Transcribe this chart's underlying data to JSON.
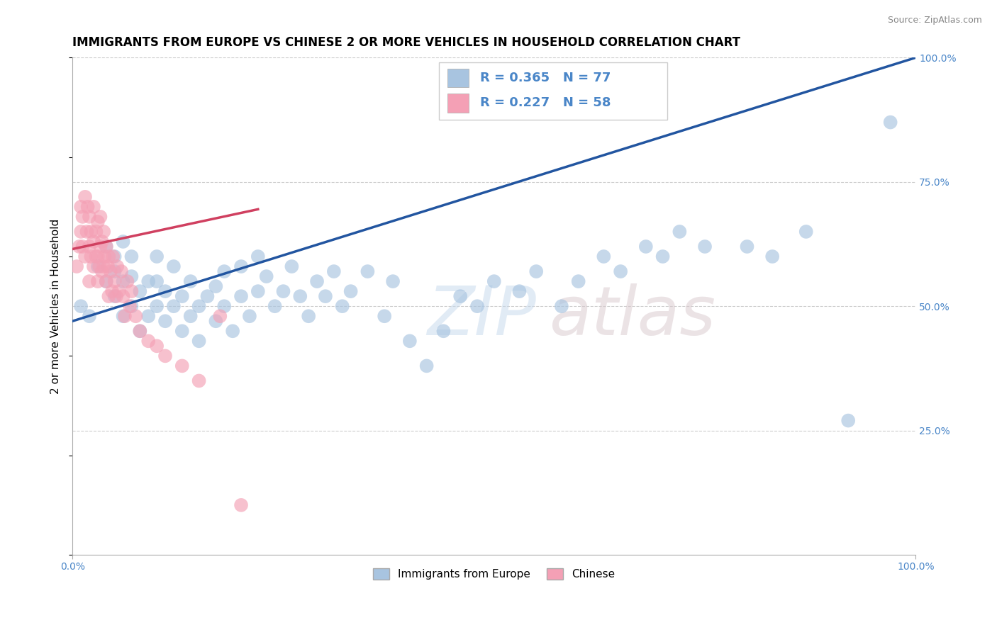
{
  "title": "IMMIGRANTS FROM EUROPE VS CHINESE 2 OR MORE VEHICLES IN HOUSEHOLD CORRELATION CHART",
  "source": "Source: ZipAtlas.com",
  "ylabel": "2 or more Vehicles in Household",
  "xlim": [
    0,
    1.0
  ],
  "ylim": [
    0,
    1.0
  ],
  "ytick_positions": [
    0.25,
    0.5,
    0.75,
    1.0
  ],
  "legend_labels": [
    "Immigrants from Europe",
    "Chinese"
  ],
  "r_blue": 0.365,
  "n_blue": 77,
  "r_pink": 0.227,
  "n_pink": 58,
  "blue_color": "#a8c4e0",
  "pink_color": "#f4a0b5",
  "blue_line_color": "#2255a0",
  "pink_line_color": "#d04060",
  "grid_color": "#cccccc",
  "blue_scatter_x": [
    0.01,
    0.02,
    0.03,
    0.04,
    0.04,
    0.05,
    0.05,
    0.05,
    0.06,
    0.06,
    0.06,
    0.07,
    0.07,
    0.07,
    0.08,
    0.08,
    0.09,
    0.09,
    0.1,
    0.1,
    0.1,
    0.11,
    0.11,
    0.12,
    0.12,
    0.13,
    0.13,
    0.14,
    0.14,
    0.15,
    0.15,
    0.16,
    0.17,
    0.17,
    0.18,
    0.18,
    0.19,
    0.2,
    0.2,
    0.21,
    0.22,
    0.22,
    0.23,
    0.24,
    0.25,
    0.26,
    0.27,
    0.28,
    0.29,
    0.3,
    0.31,
    0.32,
    0.33,
    0.35,
    0.37,
    0.38,
    0.4,
    0.42,
    0.44,
    0.46,
    0.48,
    0.5,
    0.53,
    0.55,
    0.58,
    0.6,
    0.63,
    0.65,
    0.68,
    0.7,
    0.72,
    0.75,
    0.8,
    0.83,
    0.87,
    0.92,
    0.97
  ],
  "blue_scatter_y": [
    0.5,
    0.48,
    0.58,
    0.55,
    0.62,
    0.52,
    0.57,
    0.6,
    0.48,
    0.55,
    0.63,
    0.5,
    0.56,
    0.6,
    0.45,
    0.53,
    0.48,
    0.55,
    0.5,
    0.55,
    0.6,
    0.47,
    0.53,
    0.5,
    0.58,
    0.45,
    0.52,
    0.48,
    0.55,
    0.43,
    0.5,
    0.52,
    0.47,
    0.54,
    0.5,
    0.57,
    0.45,
    0.52,
    0.58,
    0.48,
    0.53,
    0.6,
    0.56,
    0.5,
    0.53,
    0.58,
    0.52,
    0.48,
    0.55,
    0.52,
    0.57,
    0.5,
    0.53,
    0.57,
    0.48,
    0.55,
    0.43,
    0.38,
    0.45,
    0.52,
    0.5,
    0.55,
    0.53,
    0.57,
    0.5,
    0.55,
    0.6,
    0.57,
    0.62,
    0.6,
    0.65,
    0.62,
    0.62,
    0.6,
    0.65,
    0.27,
    0.87
  ],
  "pink_scatter_x": [
    0.005,
    0.008,
    0.01,
    0.01,
    0.012,
    0.012,
    0.015,
    0.015,
    0.017,
    0.018,
    0.02,
    0.02,
    0.02,
    0.022,
    0.022,
    0.025,
    0.025,
    0.025,
    0.028,
    0.028,
    0.03,
    0.03,
    0.03,
    0.032,
    0.033,
    0.033,
    0.035,
    0.035,
    0.037,
    0.037,
    0.038,
    0.04,
    0.04,
    0.042,
    0.043,
    0.043,
    0.045,
    0.047,
    0.048,
    0.05,
    0.052,
    0.053,
    0.055,
    0.058,
    0.06,
    0.062,
    0.065,
    0.068,
    0.07,
    0.075,
    0.08,
    0.09,
    0.1,
    0.11,
    0.13,
    0.15,
    0.175,
    0.2
  ],
  "pink_scatter_y": [
    0.58,
    0.62,
    0.65,
    0.7,
    0.62,
    0.68,
    0.6,
    0.72,
    0.65,
    0.7,
    0.55,
    0.62,
    0.68,
    0.6,
    0.65,
    0.58,
    0.63,
    0.7,
    0.6,
    0.65,
    0.55,
    0.6,
    0.67,
    0.58,
    0.62,
    0.68,
    0.57,
    0.63,
    0.58,
    0.65,
    0.6,
    0.55,
    0.62,
    0.58,
    0.52,
    0.6,
    0.57,
    0.53,
    0.6,
    0.55,
    0.52,
    0.58,
    0.53,
    0.57,
    0.52,
    0.48,
    0.55,
    0.5,
    0.53,
    0.48,
    0.45,
    0.43,
    0.42,
    0.4,
    0.38,
    0.35,
    0.48,
    0.1
  ],
  "blue_line_x0": 0.0,
  "blue_line_x1": 1.0,
  "blue_line_y0": 0.47,
  "blue_line_y1": 1.0,
  "pink_line_x0": 0.0,
  "pink_line_x1": 0.22,
  "pink_line_y0": 0.615,
  "pink_line_y1": 0.695
}
